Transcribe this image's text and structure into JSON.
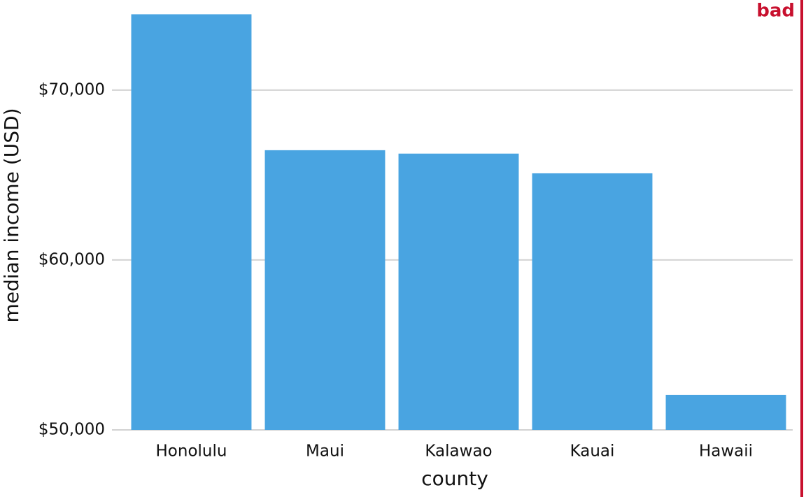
{
  "chart_data": {
    "type": "bar",
    "xlabel": "county",
    "ylabel": "median income (USD)",
    "annotation": "bad",
    "categories": [
      "Honolulu",
      "Maui",
      "Kalawao",
      "Kauai",
      "Hawaii"
    ],
    "values": [
      74460,
      66460,
      66260,
      65100,
      52060
    ],
    "color": "#49a4e1",
    "ylim": [
      50000,
      75300
    ],
    "yticks": [
      {
        "value": 50000,
        "label": "$50,000"
      },
      {
        "value": 60000,
        "label": "$60,000"
      },
      {
        "value": 70000,
        "label": "$70,000"
      }
    ],
    "grid": true
  }
}
